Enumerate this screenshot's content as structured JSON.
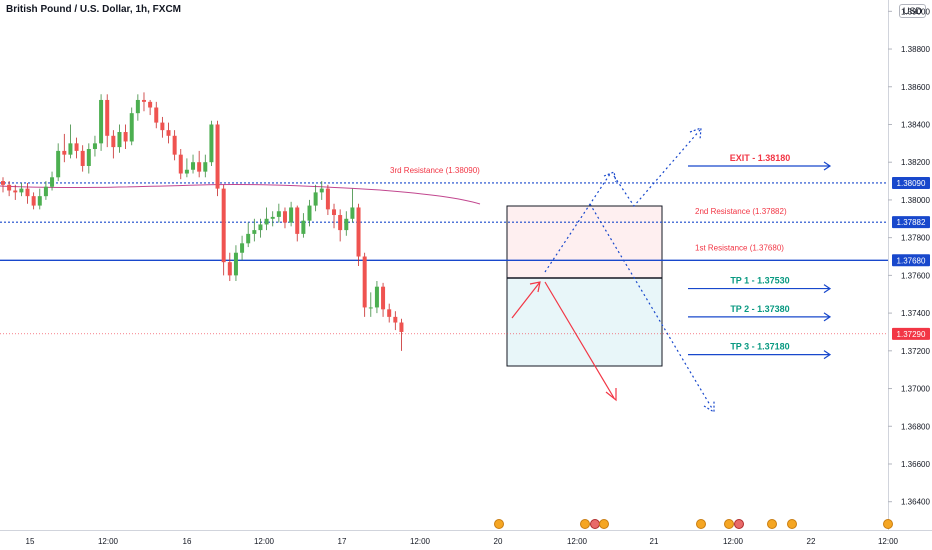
{
  "header": {
    "title": "British Pound / U.S. Dollar, 1h, FXCM",
    "currency": "USD"
  },
  "chart_data": {
    "type": "candlestick",
    "ylim": [
      1.3625,
      1.3906
    ],
    "y_ticks": [
      "1.39000",
      "1.38800",
      "1.38600",
      "1.38400",
      "1.38200",
      "1.38000",
      "1.37800",
      "1.37600",
      "1.37400",
      "1.37200",
      "1.37000",
      "1.36800",
      "1.36600",
      "1.36400"
    ],
    "x_ticks": [
      "15",
      "12:00",
      "16",
      "12:00",
      "17",
      "12:00",
      "20",
      "12:00",
      "21",
      "12:00",
      "22",
      "12:00"
    ],
    "price_labels": [
      {
        "text": "1.38090",
        "value": 1.3809,
        "color": "#1848cc"
      },
      {
        "text": "1.37882",
        "value": 1.37882,
        "color": "#1848cc"
      },
      {
        "text": "1.37680",
        "value": 1.3768,
        "color": "#1848cc"
      },
      {
        "text": "1.37290",
        "value": 1.3729,
        "color": "#f23645"
      }
    ],
    "levels": [
      {
        "label": "3rd Resistance (1.38090)",
        "value": 1.3809
      },
      {
        "label": "2nd Resistance (1.37882)",
        "value": 1.37882
      },
      {
        "label": "1st Resistance (1.37680)",
        "value": 1.3768
      }
    ],
    "targets": [
      {
        "label": "EXIT - 1.38180",
        "value": 1.3818,
        "color": "#f23645"
      },
      {
        "label": "TP 1 - 1.37530",
        "value": 1.3753,
        "color": "#089981"
      },
      {
        "label": "TP 2 - 1.37380",
        "value": 1.3738,
        "color": "#089981"
      },
      {
        "label": "TP 3 - 1.37180",
        "value": 1.3718,
        "color": "#089981"
      }
    ],
    "candles": [
      [
        1.381,
        1.3808,
        1.3812,
        1.3804
      ],
      [
        1.3808,
        1.3805,
        1.381,
        1.3802
      ],
      [
        1.3805,
        1.3804,
        1.3808,
        1.38
      ],
      [
        1.3804,
        1.3806,
        1.3809,
        1.3802
      ],
      [
        1.3806,
        1.3802,
        1.3809,
        1.3798
      ],
      [
        1.3802,
        1.3797,
        1.3804,
        1.3795
      ],
      [
        1.3797,
        1.3802,
        1.3806,
        1.3795
      ],
      [
        1.3802,
        1.3807,
        1.381,
        1.38
      ],
      [
        1.3807,
        1.3812,
        1.3815,
        1.3805
      ],
      [
        1.3812,
        1.3826,
        1.383,
        1.381
      ],
      [
        1.3826,
        1.3824,
        1.3835,
        1.382
      ],
      [
        1.3824,
        1.383,
        1.384,
        1.3822
      ],
      [
        1.383,
        1.3826,
        1.3833,
        1.3822
      ],
      [
        1.3826,
        1.3818,
        1.3829,
        1.3815
      ],
      [
        1.3818,
        1.3827,
        1.383,
        1.3814
      ],
      [
        1.3827,
        1.383,
        1.3834,
        1.3823
      ],
      [
        1.383,
        1.3853,
        1.3856,
        1.3826
      ],
      [
        1.3853,
        1.3834,
        1.3856,
        1.3828
      ],
      [
        1.3834,
        1.3828,
        1.3837,
        1.3822
      ],
      [
        1.3828,
        1.3836,
        1.384,
        1.3825
      ],
      [
        1.3836,
        1.3831,
        1.384,
        1.3827
      ],
      [
        1.3831,
        1.3846,
        1.3849,
        1.3829
      ],
      [
        1.3846,
        1.3853,
        1.3856,
        1.3842
      ],
      [
        1.3853,
        1.3852,
        1.3857,
        1.3847
      ],
      [
        1.3852,
        1.3849,
        1.3853,
        1.3845
      ],
      [
        1.3849,
        1.3841,
        1.3852,
        1.3838
      ],
      [
        1.3841,
        1.3837,
        1.3844,
        1.3833
      ],
      [
        1.3837,
        1.3834,
        1.3841,
        1.383
      ],
      [
        1.3834,
        1.3824,
        1.3837,
        1.3821
      ],
      [
        1.3824,
        1.3814,
        1.3827,
        1.3811
      ],
      [
        1.3814,
        1.3816,
        1.3822,
        1.3812
      ],
      [
        1.3816,
        1.382,
        1.3824,
        1.3814
      ],
      [
        1.382,
        1.3815,
        1.3826,
        1.3812
      ],
      [
        1.3815,
        1.382,
        1.3824,
        1.3812
      ],
      [
        1.382,
        1.384,
        1.3842,
        1.3818
      ],
      [
        1.384,
        1.3806,
        1.3842,
        1.3802
      ],
      [
        1.3806,
        1.3767,
        1.3808,
        1.376
      ],
      [
        1.3767,
        1.376,
        1.3772,
        1.3757
      ],
      [
        1.376,
        1.3772,
        1.3776,
        1.3757
      ],
      [
        1.3772,
        1.3777,
        1.3781,
        1.3768
      ],
      [
        1.3777,
        1.3782,
        1.3788,
        1.3775
      ],
      [
        1.3782,
        1.3784,
        1.379,
        1.3778
      ],
      [
        1.3784,
        1.3787,
        1.379,
        1.378
      ],
      [
        1.3787,
        1.379,
        1.3796,
        1.3784
      ],
      [
        1.379,
        1.3791,
        1.3794,
        1.3786
      ],
      [
        1.3791,
        1.3794,
        1.3798,
        1.3788
      ],
      [
        1.3794,
        1.3788,
        1.3796,
        1.3785
      ],
      [
        1.3788,
        1.3796,
        1.3799,
        1.3786
      ],
      [
        1.3796,
        1.3782,
        1.3797,
        1.3778
      ],
      [
        1.3782,
        1.3789,
        1.3793,
        1.378
      ],
      [
        1.3789,
        1.3797,
        1.38,
        1.3786
      ],
      [
        1.3797,
        1.3804,
        1.3808,
        1.3794
      ],
      [
        1.3804,
        1.3806,
        1.381,
        1.38
      ],
      [
        1.3806,
        1.3795,
        1.3808,
        1.3792
      ],
      [
        1.3795,
        1.3792,
        1.3798,
        1.3785
      ],
      [
        1.3792,
        1.3784,
        1.3795,
        1.3778
      ],
      [
        1.3784,
        1.379,
        1.3794,
        1.3781
      ],
      [
        1.379,
        1.3796,
        1.3806,
        1.3788
      ],
      [
        1.3796,
        1.377,
        1.3798,
        1.3765
      ],
      [
        1.377,
        1.3743,
        1.3772,
        1.3738
      ],
      [
        1.3743,
        1.3743,
        1.3751,
        1.3738
      ],
      [
        1.3743,
        1.3754,
        1.3757,
        1.374
      ],
      [
        1.3754,
        1.3742,
        1.3756,
        1.3738
      ],
      [
        1.3742,
        1.3738,
        1.3745,
        1.3735
      ],
      [
        1.3738,
        1.3735,
        1.3741,
        1.3731
      ],
      [
        1.3735,
        1.373,
        1.3737,
        1.372
      ]
    ]
  }
}
